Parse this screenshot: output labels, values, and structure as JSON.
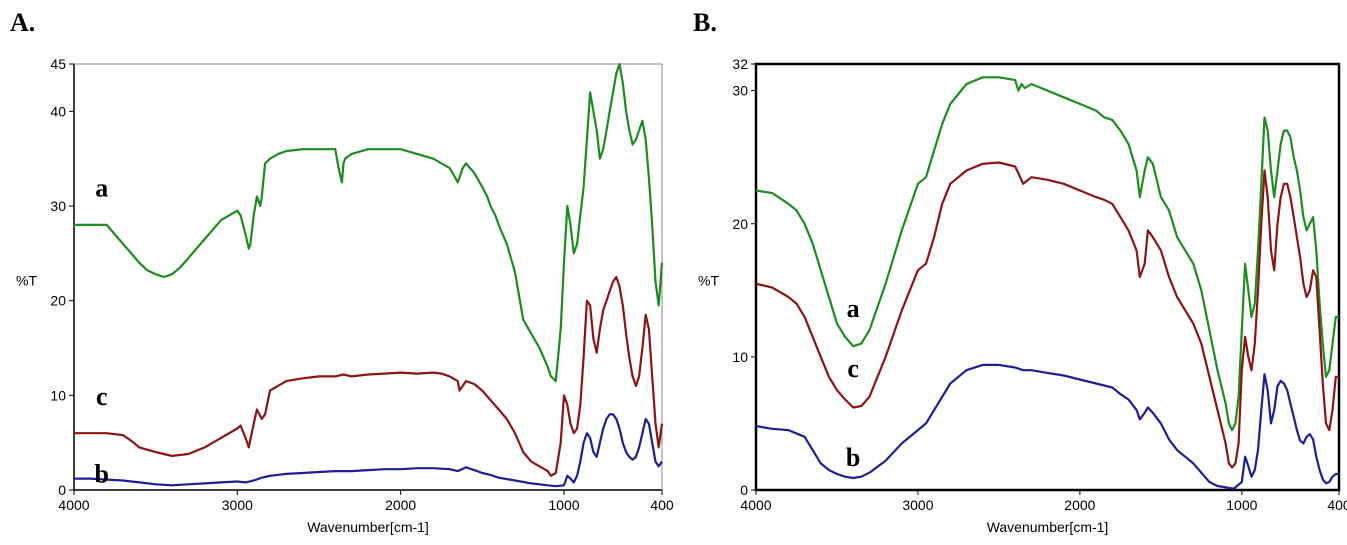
{
  "panels": [
    {
      "letter": "A."
    },
    {
      "letter": "B."
    }
  ],
  "colors": {
    "a": "#1e8c1e",
    "b": "#1e1e96",
    "c": "#8c1414"
  },
  "chart_data": [
    {
      "type": "line",
      "panel": "A.",
      "xlabel": "Wavenumber[cm-1]",
      "ylabel": "%T",
      "xlim": [
        4000,
        400
      ],
      "ylim": [
        0,
        45
      ],
      "xticks": [
        4000,
        3000,
        2000,
        1000,
        400
      ],
      "yticks": [
        0,
        10,
        20,
        30,
        40,
        45
      ],
      "grid": false,
      "series": [
        {
          "name": "a",
          "color": "#1e8c1e",
          "label_at": [
            3830,
            31
          ],
          "x": [
            4000,
            3900,
            3800,
            3750,
            3700,
            3650,
            3600,
            3550,
            3500,
            3450,
            3400,
            3350,
            3300,
            3200,
            3100,
            3000,
            2980,
            2950,
            2930,
            2920,
            2900,
            2880,
            2860,
            2850,
            2830,
            2800,
            2750,
            2700,
            2600,
            2500,
            2400,
            2380,
            2360,
            2350,
            2340,
            2300,
            2200,
            2100,
            2000,
            1900,
            1800,
            1750,
            1700,
            1650,
            1640,
            1620,
            1600,
            1550,
            1500,
            1470,
            1450,
            1420,
            1400,
            1350,
            1300,
            1250,
            1200,
            1150,
            1100,
            1080,
            1050,
            1020,
            1000,
            980,
            960,
            940,
            920,
            900,
            880,
            860,
            840,
            820,
            800,
            780,
            760,
            740,
            720,
            700,
            680,
            660,
            640,
            620,
            600,
            580,
            560,
            540,
            520,
            500,
            480,
            460,
            440,
            420,
            400
          ],
          "y": [
            28,
            28,
            28,
            27,
            26,
            25,
            24,
            23.2,
            22.8,
            22.5,
            22.8,
            23.5,
            24.5,
            26.5,
            28.5,
            29.5,
            29,
            27,
            25.5,
            26,
            29,
            31,
            30,
            31,
            34.5,
            35,
            35.5,
            35.8,
            36,
            36,
            36,
            34,
            32.5,
            34.5,
            35,
            35.5,
            36,
            36,
            36,
            35.5,
            35,
            34.5,
            34,
            32.5,
            33,
            34,
            34.5,
            33.5,
            32,
            31,
            30,
            29,
            28,
            26,
            23,
            18,
            16.5,
            15,
            13,
            12,
            11.5,
            17,
            24,
            30,
            28,
            25,
            26,
            29,
            32,
            37,
            42,
            40,
            38,
            35,
            36,
            38,
            40,
            42,
            44,
            45,
            43,
            40,
            38,
            36.5,
            37,
            38,
            39,
            37,
            33,
            28,
            22,
            19.5,
            24
          ]
        },
        {
          "name": "c",
          "color": "#8c1414",
          "label_at": [
            3830,
            9
          ],
          "x": [
            4000,
            3900,
            3800,
            3700,
            3650,
            3600,
            3500,
            3450,
            3400,
            3300,
            3200,
            3100,
            3000,
            2980,
            2950,
            2930,
            2900,
            2880,
            2850,
            2830,
            2800,
            2700,
            2600,
            2500,
            2400,
            2350,
            2300,
            2200,
            2100,
            2000,
            1900,
            1800,
            1750,
            1700,
            1650,
            1640,
            1600,
            1550,
            1500,
            1450,
            1400,
            1350,
            1300,
            1250,
            1200,
            1150,
            1100,
            1080,
            1050,
            1020,
            1000,
            980,
            960,
            940,
            920,
            900,
            880,
            860,
            840,
            820,
            800,
            780,
            760,
            740,
            720,
            700,
            680,
            660,
            640,
            620,
            600,
            580,
            560,
            540,
            520,
            500,
            480,
            460,
            440,
            420,
            400
          ],
          "y": [
            6,
            6,
            6,
            5.8,
            5.2,
            4.5,
            4,
            3.8,
            3.6,
            3.8,
            4.5,
            5.5,
            6.5,
            6.8,
            5.5,
            4.5,
            7,
            8.5,
            7.5,
            8,
            10.5,
            11.5,
            11.8,
            12,
            12,
            12.2,
            12,
            12.2,
            12.3,
            12.4,
            12.3,
            12.4,
            12.3,
            12,
            11.5,
            10.5,
            11.5,
            11.2,
            10.5,
            9.5,
            8.5,
            7.5,
            6,
            4,
            3,
            2.5,
            2,
            1.5,
            1.8,
            5,
            10,
            9,
            7,
            6,
            6.5,
            9,
            14,
            20,
            19.5,
            16,
            14.5,
            17,
            19,
            20,
            21,
            22,
            22.5,
            21.5,
            19.5,
            16.5,
            14,
            12,
            11,
            12,
            15,
            18.5,
            17,
            12,
            7,
            4.5,
            7
          ]
        },
        {
          "name": "b",
          "color": "#1e1e96",
          "label_at": [
            3830,
            0.8
          ],
          "x": [
            4000,
            3900,
            3800,
            3700,
            3600,
            3500,
            3400,
            3300,
            3200,
            3100,
            3000,
            2950,
            2900,
            2850,
            2800,
            2700,
            2600,
            2500,
            2400,
            2300,
            2200,
            2100,
            2000,
            1900,
            1800,
            1700,
            1650,
            1600,
            1550,
            1500,
            1450,
            1400,
            1300,
            1200,
            1100,
            1050,
            1000,
            980,
            960,
            940,
            920,
            900,
            880,
            860,
            840,
            820,
            800,
            780,
            760,
            740,
            720,
            700,
            680,
            660,
            640,
            620,
            600,
            580,
            560,
            540,
            520,
            500,
            480,
            460,
            440,
            420,
            400
          ],
          "y": [
            1.2,
            1.2,
            1.1,
            1,
            0.8,
            0.6,
            0.5,
            0.6,
            0.7,
            0.8,
            0.9,
            0.8,
            1,
            1.3,
            1.5,
            1.7,
            1.8,
            1.9,
            2,
            2,
            2.1,
            2.2,
            2.2,
            2.3,
            2.3,
            2.2,
            2,
            2.4,
            2.1,
            1.8,
            1.6,
            1.3,
            1,
            0.7,
            0.5,
            0.4,
            0.5,
            1.5,
            1.2,
            0.8,
            1.5,
            3,
            5,
            6,
            5.5,
            4,
            3.5,
            5,
            6.5,
            7.5,
            8,
            8,
            7.5,
            6.5,
            5,
            4,
            3.5,
            3.2,
            3.5,
            4.5,
            6,
            7.5,
            7,
            5,
            3,
            2.5,
            3
          ]
        }
      ]
    },
    {
      "type": "line",
      "panel": "B.",
      "xlabel": "Wavenumber[cm-1]",
      "ylabel": "%T",
      "xlim": [
        4000,
        400
      ],
      "ylim": [
        0,
        32
      ],
      "xticks": [
        4000,
        3000,
        2000,
        1000,
        400
      ],
      "yticks": [
        0,
        10,
        20,
        30,
        32
      ],
      "grid": false,
      "series": [
        {
          "name": "a",
          "color": "#1e8c1e",
          "label_at": [
            3400,
            13
          ],
          "x": [
            4000,
            3900,
            3800,
            3750,
            3700,
            3650,
            3600,
            3550,
            3500,
            3450,
            3400,
            3350,
            3300,
            3200,
            3100,
            3000,
            2950,
            2900,
            2850,
            2800,
            2700,
            2600,
            2500,
            2400,
            2380,
            2360,
            2340,
            2300,
            2200,
            2100,
            2000,
            1900,
            1850,
            1800,
            1750,
            1700,
            1650,
            1630,
            1600,
            1580,
            1550,
            1500,
            1450,
            1400,
            1350,
            1300,
            1250,
            1200,
            1150,
            1100,
            1080,
            1060,
            1040,
            1020,
            1000,
            980,
            960,
            940,
            920,
            900,
            880,
            860,
            840,
            820,
            800,
            780,
            760,
            740,
            720,
            700,
            680,
            660,
            640,
            620,
            600,
            580,
            560,
            540,
            520,
            500,
            480,
            460,
            440,
            420,
            400
          ],
          "y": [
            22.5,
            22.3,
            21.5,
            21,
            20,
            18.5,
            16.5,
            14.5,
            12.5,
            11.5,
            10.8,
            11,
            12,
            15.5,
            19.5,
            23,
            23.5,
            25.5,
            27.5,
            29,
            30.5,
            31,
            31,
            30.8,
            30,
            30.5,
            30.2,
            30.5,
            30,
            29.5,
            29,
            28.5,
            28,
            27.8,
            27,
            26,
            24,
            22,
            24,
            25,
            24.5,
            22,
            21,
            19,
            18,
            17,
            15,
            12,
            9,
            6.5,
            5,
            4.5,
            5,
            7,
            12,
            17,
            15,
            13,
            14,
            18,
            23,
            28,
            27,
            24,
            22,
            24,
            26,
            27,
            27,
            26.5,
            25,
            24,
            22.5,
            20.5,
            19.5,
            20,
            20.5,
            18,
            14,
            11,
            8.5,
            9,
            11,
            13,
            13
          ]
        },
        {
          "name": "c",
          "color": "#8c1414",
          "label_at": [
            3400,
            8.5
          ],
          "x": [
            4000,
            3900,
            3800,
            3750,
            3700,
            3650,
            3600,
            3550,
            3500,
            3450,
            3400,
            3350,
            3300,
            3200,
            3100,
            3000,
            2950,
            2900,
            2850,
            2800,
            2700,
            2600,
            2500,
            2400,
            2380,
            2350,
            2300,
            2200,
            2100,
            2000,
            1900,
            1850,
            1800,
            1750,
            1700,
            1650,
            1630,
            1600,
            1580,
            1550,
            1500,
            1450,
            1400,
            1350,
            1300,
            1250,
            1200,
            1150,
            1100,
            1080,
            1060,
            1040,
            1020,
            1000,
            980,
            960,
            940,
            920,
            900,
            880,
            860,
            840,
            820,
            800,
            780,
            760,
            740,
            720,
            700,
            680,
            660,
            640,
            620,
            600,
            580,
            560,
            540,
            520,
            500,
            480,
            460,
            440,
            420,
            400
          ],
          "y": [
            15.5,
            15.2,
            14.5,
            14,
            13,
            11.5,
            10,
            8.5,
            7.5,
            6.8,
            6.2,
            6.3,
            7,
            10,
            13.5,
            16.5,
            17,
            19,
            21.5,
            23,
            24,
            24.5,
            24.6,
            24.3,
            23.8,
            23,
            23.5,
            23.3,
            23,
            22.5,
            22,
            21.8,
            21.5,
            20.5,
            19.5,
            18,
            16,
            17,
            19.5,
            19,
            18,
            16,
            14.5,
            13.5,
            12.5,
            11,
            8.5,
            6,
            3.5,
            2,
            1.7,
            2,
            3.5,
            9,
            11.5,
            10,
            9,
            11,
            15,
            20,
            24,
            22,
            18,
            16.5,
            20,
            22,
            23,
            23,
            22,
            20.5,
            19,
            17.5,
            15.5,
            14.5,
            15,
            16.5,
            16,
            12,
            8,
            5,
            4.5,
            6,
            8.5,
            8.5
          ]
        },
        {
          "name": "b",
          "color": "#1e1e96",
          "label_at": [
            3400,
            1.8
          ],
          "x": [
            4000,
            3900,
            3800,
            3700,
            3650,
            3600,
            3550,
            3500,
            3450,
            3400,
            3350,
            3300,
            3200,
            3100,
            3000,
            2950,
            2900,
            2850,
            2800,
            2700,
            2600,
            2500,
            2400,
            2350,
            2300,
            2200,
            2100,
            2000,
            1900,
            1800,
            1750,
            1700,
            1650,
            1630,
            1600,
            1580,
            1550,
            1500,
            1450,
            1400,
            1350,
            1300,
            1250,
            1200,
            1150,
            1100,
            1050,
            1000,
            980,
            960,
            940,
            920,
            900,
            880,
            860,
            840,
            820,
            800,
            780,
            760,
            740,
            720,
            700,
            680,
            660,
            640,
            620,
            600,
            580,
            560,
            540,
            520,
            500,
            480,
            460,
            440,
            420,
            400
          ],
          "y": [
            4.8,
            4.6,
            4.5,
            4,
            3,
            2,
            1.5,
            1.2,
            1,
            0.9,
            1,
            1.3,
            2.2,
            3.5,
            4.5,
            5,
            6,
            7,
            8,
            9,
            9.4,
            9.4,
            9.2,
            9,
            9,
            8.8,
            8.6,
            8.3,
            8,
            7.7,
            7.2,
            6.8,
            6,
            5.3,
            5.8,
            6.2,
            5.8,
            5,
            3.8,
            3,
            2.5,
            2,
            1.3,
            0.6,
            0.3,
            0.2,
            0.1,
            0.6,
            2.5,
            1.8,
            1,
            1.5,
            3,
            6,
            8.7,
            7.5,
            5,
            6,
            7.8,
            8.2,
            8,
            7.5,
            6.5,
            5.5,
            4.5,
            3.7,
            3.5,
            4,
            4.2,
            3.8,
            2.5,
            1.5,
            0.8,
            0.5,
            0.6,
            1,
            1.2,
            1.2
          ]
        }
      ]
    }
  ]
}
